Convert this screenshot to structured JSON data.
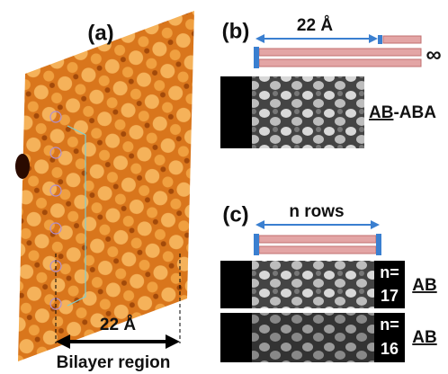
{
  "panels": {
    "a": {
      "label": "(a)",
      "scale_label": "22 Å",
      "caption": "Bilayer region"
    },
    "b": {
      "label": "(b)",
      "scale_label": "22 Å",
      "infinity": "∞",
      "stacking": {
        "underlined": "AB",
        "rest": "-ABA"
      }
    },
    "c": {
      "label": "(c)",
      "width_label": "n rows",
      "rows": [
        {
          "n_prefix": "n=",
          "n": 17,
          "stacking": "AB"
        },
        {
          "n_prefix": "n=",
          "n": 16,
          "stacking": "AB"
        }
      ]
    }
  }
}
